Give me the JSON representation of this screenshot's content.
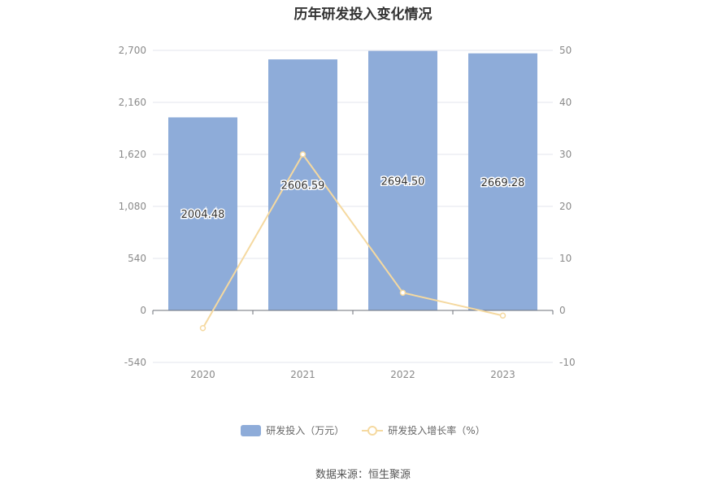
{
  "chart_data": {
    "title": "历年研发投入变化情况",
    "categories": [
      "2020",
      "2021",
      "2022",
      "2023"
    ],
    "series": [
      {
        "name": "研发投入（万元）",
        "type": "bar",
        "axis": "left",
        "color": "#8eacd9",
        "values": [
          2004.48,
          2606.59,
          2694.5,
          2669.28
        ],
        "labels": [
          "2004.48",
          "2606.59",
          "2694.50",
          "2669.28"
        ]
      },
      {
        "name": "研发投入增长率（%）",
        "type": "line",
        "axis": "right",
        "color": "#f5d9a0",
        "values": [
          -3.4,
          30.0,
          3.4,
          -1.0
        ]
      }
    ],
    "y_left": {
      "min": -540,
      "max": 2700,
      "ticks": [
        "2,700",
        "2,160",
        "1,620",
        "1,080",
        "540",
        "0",
        "-540"
      ]
    },
    "y_right": {
      "min": -10,
      "max": 50,
      "ticks": [
        "50",
        "40",
        "30",
        "20",
        "10",
        "0",
        "-10"
      ]
    },
    "grid": true,
    "legend_position": "bottom"
  },
  "footer": {
    "source": "数据来源：恒生聚源"
  }
}
